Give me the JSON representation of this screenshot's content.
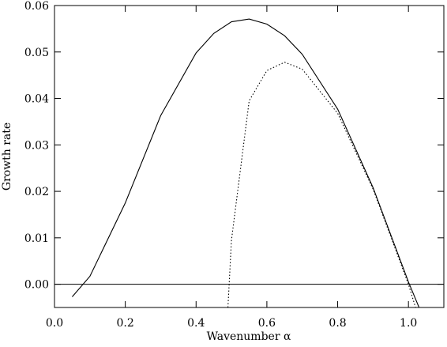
{
  "chart_data": {
    "type": "line",
    "x_label": "Wavenumber α",
    "y_label": "Growth rate",
    "series": [
      {
        "color": "#000000",
        "style": "solid",
        "x": [
          0.05,
          0.1,
          0.2,
          0.3,
          0.4,
          0.45,
          0.5,
          0.55,
          0.6,
          0.65,
          0.7,
          0.8,
          0.9,
          1.0,
          1.03
        ],
        "values": [
          -0.0027,
          0.0017,
          0.0175,
          0.0363,
          0.0498,
          0.054,
          0.0565,
          0.0571,
          0.056,
          0.0535,
          0.0495,
          0.0377,
          0.0208,
          0.0005,
          -0.005
        ]
      },
      {
        "color": "#000000",
        "style": "dotted",
        "x": [
          0.49,
          0.5,
          0.55,
          0.6,
          0.65,
          0.7,
          0.8,
          0.9,
          1.0,
          1.02
        ],
        "values": [
          -0.005,
          0.0095,
          0.0395,
          0.046,
          0.0478,
          0.0463,
          0.0368,
          0.0205,
          0.0,
          -0.005
        ]
      }
    ],
    "hline": 0,
    "xlim": [
      0,
      1.1
    ],
    "ylim": [
      -0.005,
      0.06
    ],
    "xticks": [
      {
        "value": 0,
        "label": "0.0"
      },
      {
        "value": 0.2,
        "label": "0.2"
      },
      {
        "value": 0.4,
        "label": "0.4"
      },
      {
        "value": 0.6,
        "label": "0.6"
      },
      {
        "value": 0.8,
        "label": "0.8"
      },
      {
        "value": 1.0,
        "label": "1.0"
      }
    ],
    "yticks": [
      {
        "value": 0,
        "label": "0.00"
      },
      {
        "value": 0.01,
        "label": "0.01"
      },
      {
        "value": 0.02,
        "label": "0.02"
      },
      {
        "value": 0.03,
        "label": "0.03"
      },
      {
        "value": 0.04,
        "label": "0.04"
      },
      {
        "value": 0.05,
        "label": "0.05"
      },
      {
        "value": 0.06,
        "label": "0.06"
      }
    ],
    "grid": false
  }
}
